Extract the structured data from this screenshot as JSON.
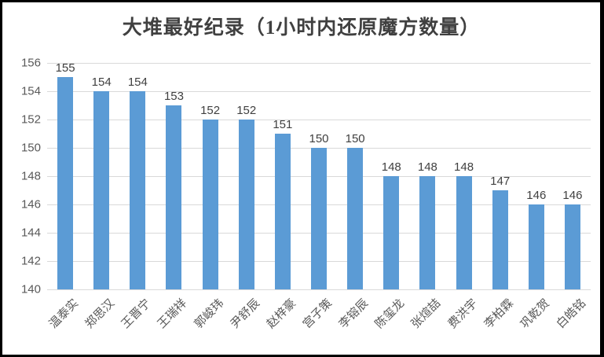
{
  "chart": {
    "title": "大堆最好纪录（1小时内还原魔方数量）"
  },
  "chart_data": {
    "type": "bar",
    "title": "大堆最好纪录（1小时内还原魔方数量）",
    "categories": [
      "温泰实",
      "郑思汉",
      "王晋宁",
      "王瑞祥",
      "郭峻玮",
      "尹舒辰",
      "赵梓豪",
      "宫子策",
      "李镕辰",
      "陈玺龙",
      "张煊喆",
      "费洪宇",
      "李柏霖",
      "巩乾贺",
      "白皓铭"
    ],
    "values": [
      155,
      154,
      154,
      153,
      152,
      152,
      151,
      150,
      150,
      148,
      148,
      148,
      147,
      146,
      146
    ],
    "xlabel": "",
    "ylabel": "",
    "ylim": [
      140,
      156
    ],
    "ytick_step": 2,
    "grid": true,
    "data_labels": true,
    "legend_position": "none",
    "colors": {
      "bar": "#5b9bd5",
      "gridline": "#d9d9d9",
      "axis_text": "#595959",
      "data_label": "#404040",
      "title": "#404040"
    }
  }
}
